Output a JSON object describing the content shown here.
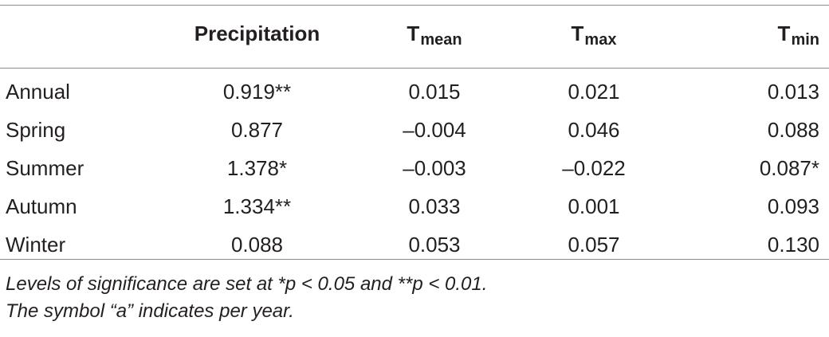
{
  "table": {
    "columns": [
      {
        "label": "",
        "base": "",
        "sub": ""
      },
      {
        "label": "Precipitation",
        "base": "Precipitation",
        "sub": ""
      },
      {
        "label": "Tmean",
        "base": "T",
        "sub": "mean"
      },
      {
        "label": "Tmax",
        "base": "T",
        "sub": "max"
      },
      {
        "label": "Tmin",
        "base": "T",
        "sub": "min"
      }
    ],
    "rows": [
      {
        "name": "Annual",
        "values": [
          "0.919**",
          "0.015",
          "0.021",
          "0.013"
        ]
      },
      {
        "name": "Spring",
        "values": [
          "0.877",
          "–0.004",
          "0.046",
          "0.088"
        ]
      },
      {
        "name": "Summer",
        "values": [
          "1.378*",
          "–0.003",
          "–0.022",
          "0.087*"
        ]
      },
      {
        "name": "Autumn",
        "values": [
          "1.334**",
          "0.033",
          "0.001",
          "0.093"
        ]
      },
      {
        "name": "Winter",
        "values": [
          "0.088",
          "0.053",
          "0.057",
          "0.130"
        ]
      }
    ]
  },
  "notes": {
    "significance": "Levels of significance are set at *p < 0.05 and **p < 0.01.",
    "symbol": "The symbol “a” indicates per year."
  }
}
